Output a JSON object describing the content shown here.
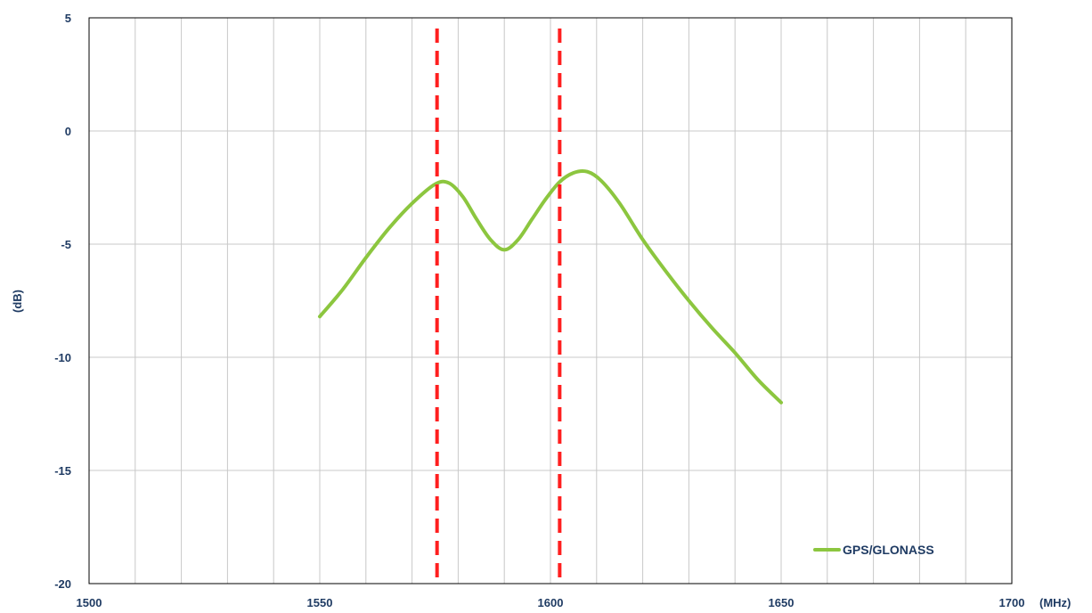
{
  "chart_data": {
    "type": "line",
    "title": "",
    "xlabel": "(MHz)",
    "ylabel": "(dB)",
    "xlim": [
      1500,
      1700
    ],
    "ylim": [
      -20,
      5
    ],
    "x_ticks": [
      1500,
      1550,
      1600,
      1650,
      1700
    ],
    "y_ticks": [
      5,
      0,
      -5,
      -10,
      -15,
      -20
    ],
    "x_tick_labels": [
      "1500",
      "1550",
      "1600",
      "1650",
      "1700"
    ],
    "y_tick_labels": [
      "5",
      "0",
      "-5",
      "-10",
      "-15",
      "-20"
    ],
    "grid": true,
    "legend_position": "bottom-right",
    "series": [
      {
        "name": "GPS/GLONASS",
        "color": "#8cc63f",
        "points": [
          [
            1550,
            -8.2
          ],
          [
            1555,
            -7.0
          ],
          [
            1560,
            -5.6
          ],
          [
            1565,
            -4.3
          ],
          [
            1570,
            -3.2
          ],
          [
            1575,
            -2.35
          ],
          [
            1578,
            -2.3
          ],
          [
            1581,
            -2.9
          ],
          [
            1584,
            -3.9
          ],
          [
            1587,
            -4.8
          ],
          [
            1590,
            -5.25
          ],
          [
            1593,
            -4.8
          ],
          [
            1596,
            -3.9
          ],
          [
            1599,
            -3.0
          ],
          [
            1602,
            -2.25
          ],
          [
            1605,
            -1.85
          ],
          [
            1608,
            -1.8
          ],
          [
            1611,
            -2.2
          ],
          [
            1615,
            -3.2
          ],
          [
            1620,
            -4.8
          ],
          [
            1625,
            -6.2
          ],
          [
            1630,
            -7.5
          ],
          [
            1635,
            -8.7
          ],
          [
            1640,
            -9.8
          ],
          [
            1645,
            -11.0
          ],
          [
            1650,
            -12.0
          ]
        ]
      }
    ],
    "markers": [
      {
        "x": 1575.42,
        "color": "#ff1f1f",
        "style": "dashed"
      },
      {
        "x": 1602.0,
        "color": "#ff1f1f",
        "style": "dashed"
      }
    ]
  }
}
